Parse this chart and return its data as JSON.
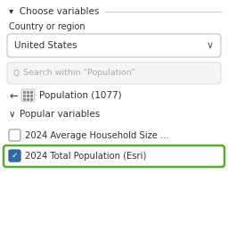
{
  "panel_bg": "#ffffff",
  "title_text": "▾  Choose variables",
  "title_color": "#333333",
  "label_country": "Country or region",
  "dropdown_text": "United States",
  "dropdown_bg": "#ffffff",
  "dropdown_border": "#c8c8c8",
  "search_placeholder": "Search within “Population”",
  "search_bg": "#f5f5f5",
  "search_border": "#e0e0e0",
  "pop_text": "Population (1077)",
  "section_label": "Popular variables",
  "item1_text": "2024 Average Household Size ...",
  "item2_text": "2024 Total Population (Esri)",
  "checkbox_checked_bg": "#2d6aa0",
  "highlight_border": "#5aab34",
  "highlight_bg": "#ffffff",
  "text_color": "#333333",
  "chevron_color": "#555555",
  "divider_color": "#cccccc",
  "font_size_title": 7.5,
  "font_size_label": 7.0,
  "font_size_item": 7.2,
  "font_size_search": 6.8
}
